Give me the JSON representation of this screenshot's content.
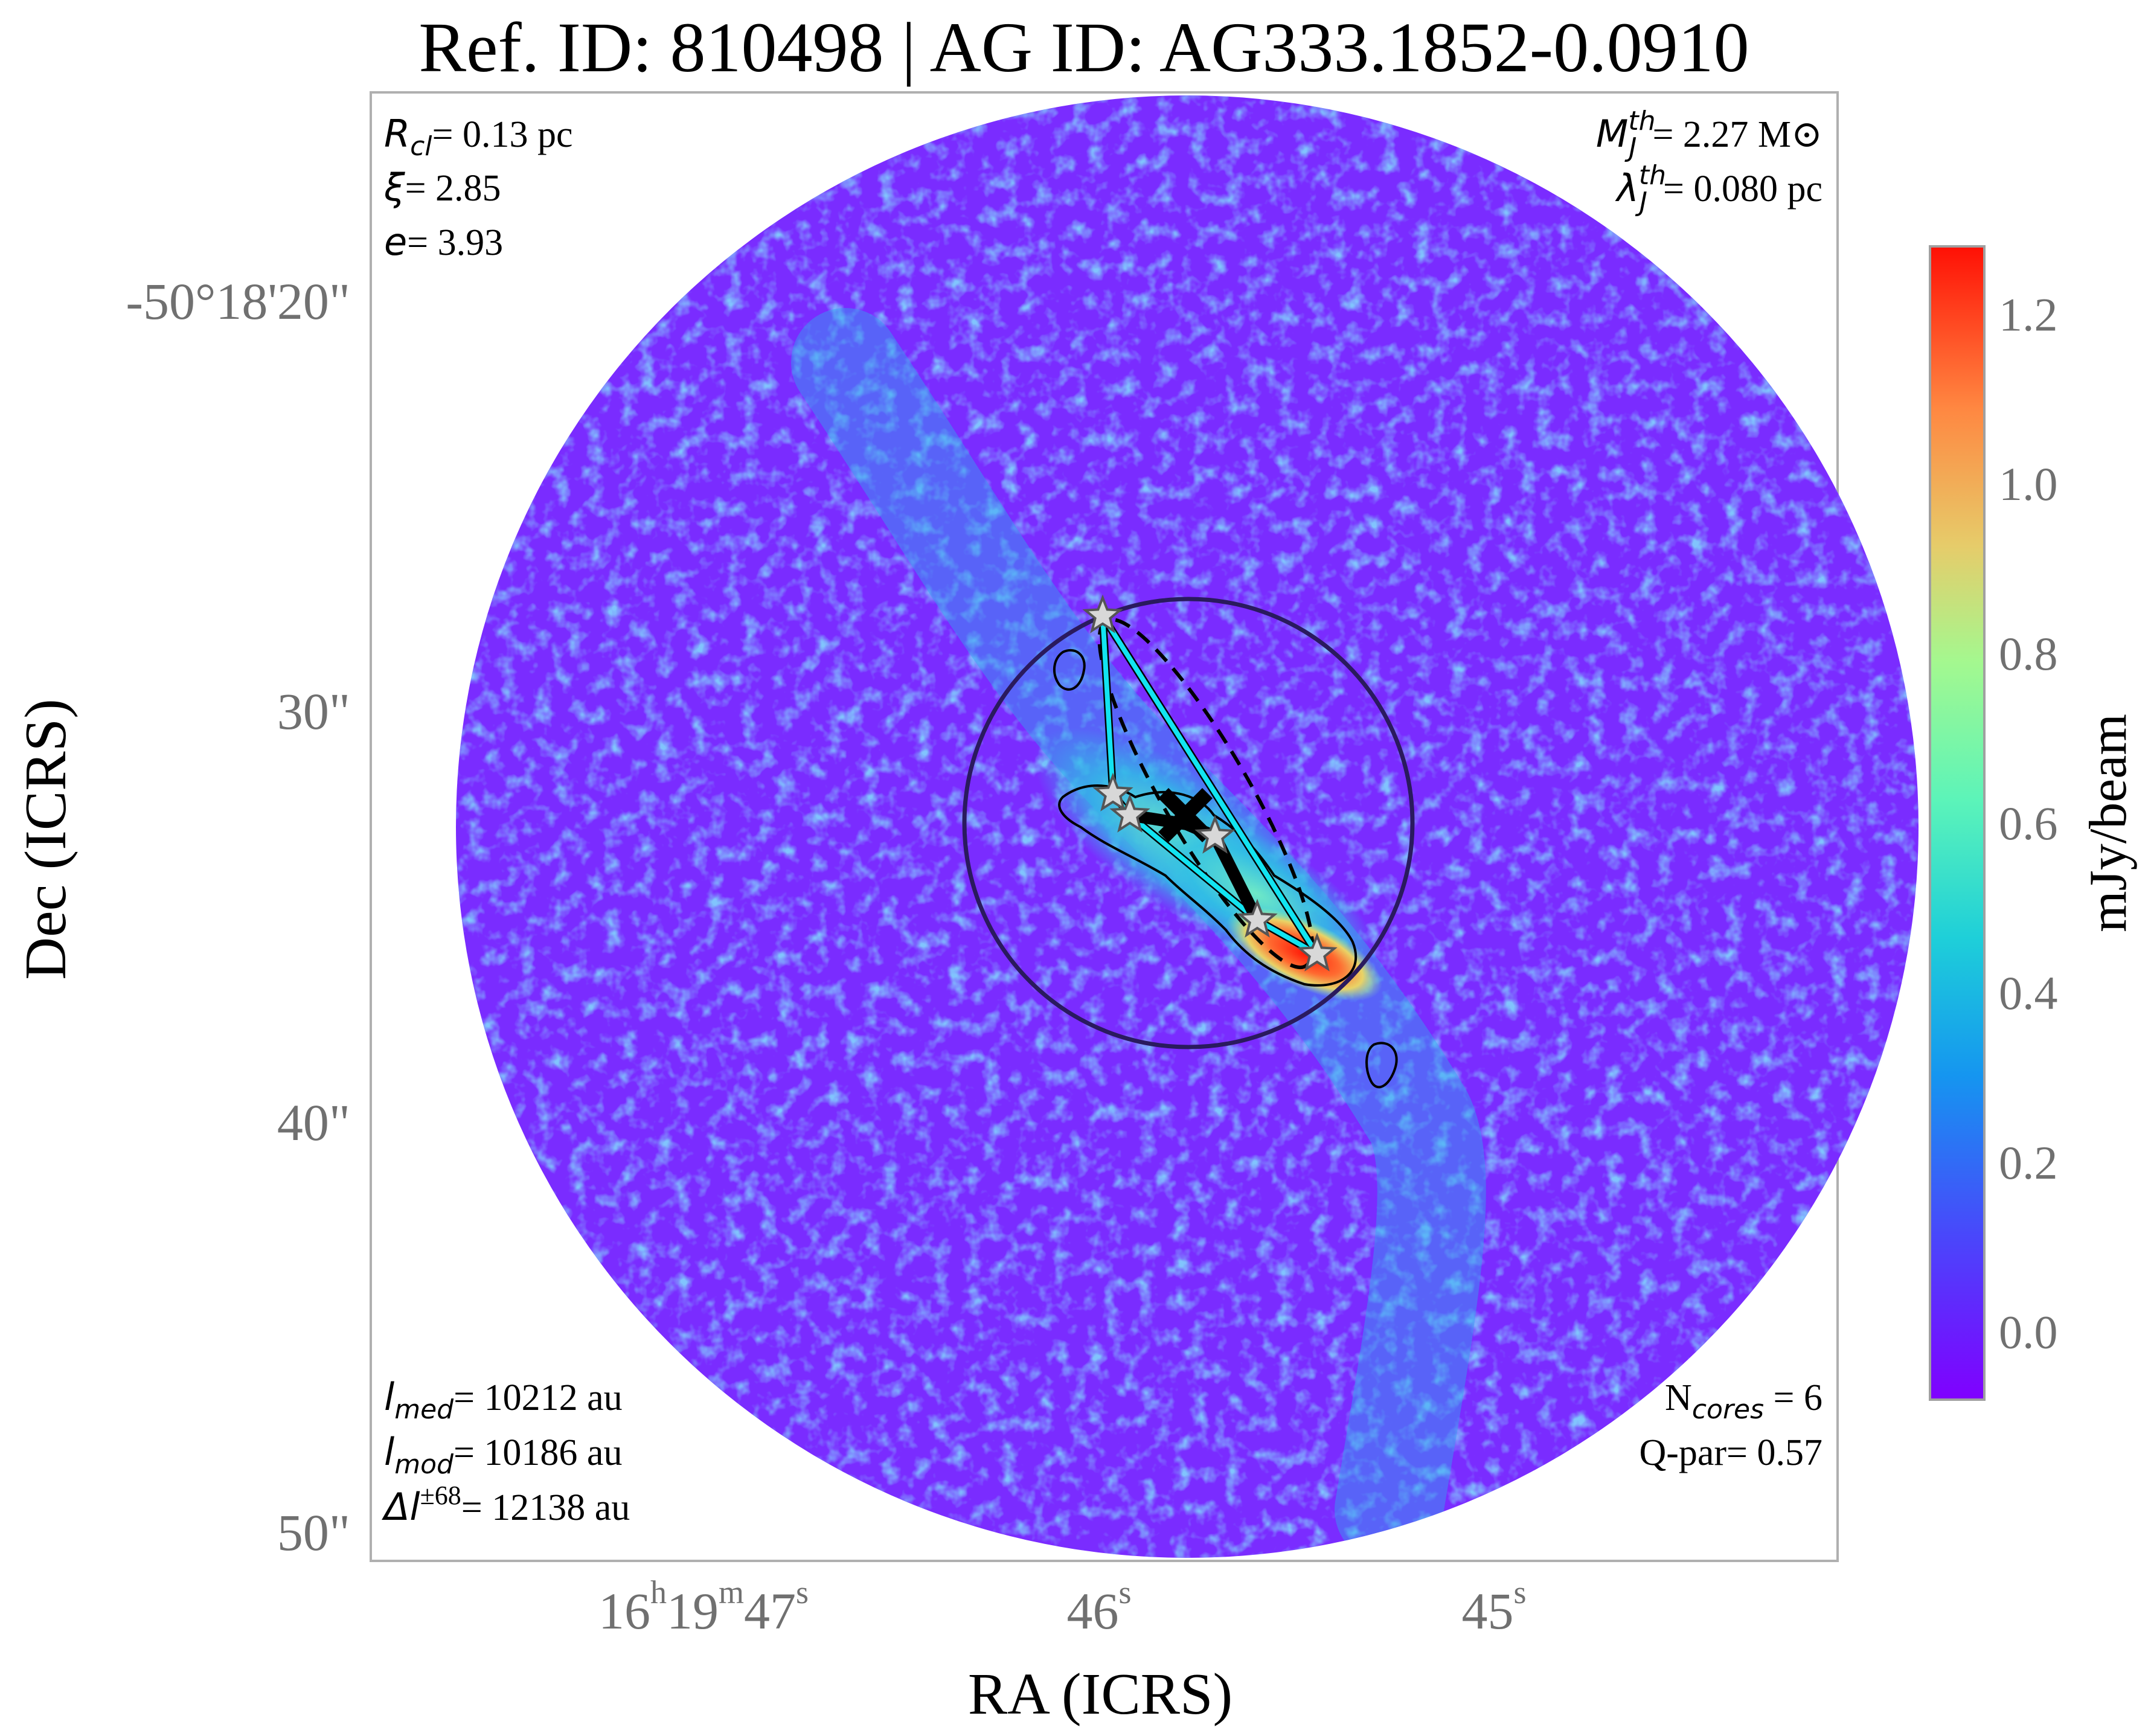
{
  "title": "Ref. ID: 810498 | AG ID: AG333.1852-0.0910",
  "axes": {
    "xlabel": "RA (ICRS)",
    "ylabel": "Dec (ICRS)",
    "x_ticks": [
      {
        "main": "16",
        "sup1": "h",
        "mid": "19",
        "sup2": "m",
        "end": "47",
        "sup3": "s"
      },
      {
        "main": "46",
        "sup": "s"
      },
      {
        "main": "45",
        "sup": "s"
      }
    ],
    "y_ticks": [
      "-50°18'20\"",
      "30\"",
      "40\"",
      "50\""
    ]
  },
  "annotations": {
    "r_cl": {
      "sym": "R",
      "sub": "cl",
      "text": "= 0.13 pc"
    },
    "xi": {
      "sym": "ξ",
      "text": "= 2.85"
    },
    "e": {
      "sym": "e",
      "text": "= 3.93"
    },
    "mj": {
      "sym": "M",
      "sup": "th",
      "sub": "J",
      "text": "= 2.27 M⊙"
    },
    "lambdaj": {
      "sym": "λ",
      "sup": "th",
      "sub": "J",
      "text": "= 0.080 pc"
    },
    "l_med": {
      "sym": "l",
      "sub": "med",
      "text": "= 10212 au"
    },
    "l_mod": {
      "sym": "l",
      "sub": "mod",
      "text": "= 10186 au"
    },
    "delta_l": {
      "sym": "Δl",
      "sup": "±68",
      "text": "= 12138 au"
    },
    "n_cores": {
      "sym": "N",
      "sub": "cores",
      "text": " = 6"
    },
    "q_par": {
      "text": "Q-par= 0.57"
    }
  },
  "colorbar": {
    "label": "mJy/beam",
    "ticks": [
      "0.0",
      "0.2",
      "0.4",
      "0.6",
      "0.8",
      "1.0",
      "1.2"
    ],
    "tick_values": [
      0.0,
      0.2,
      0.4,
      0.6,
      0.8,
      1.0,
      1.2
    ],
    "vmin": -0.08,
    "vmax": 1.28,
    "colormap": "rainbow"
  },
  "colors": {
    "background_map": "#7a2cff",
    "mst_edge": "#12e4f0",
    "hull_edge": "#000000",
    "cores": "#d8d8d8",
    "cluster_circle": "#2a1a5e"
  },
  "markers": {
    "core_count": 6,
    "star_icon": "star-icon",
    "centroid_icon": "x-icon"
  }
}
